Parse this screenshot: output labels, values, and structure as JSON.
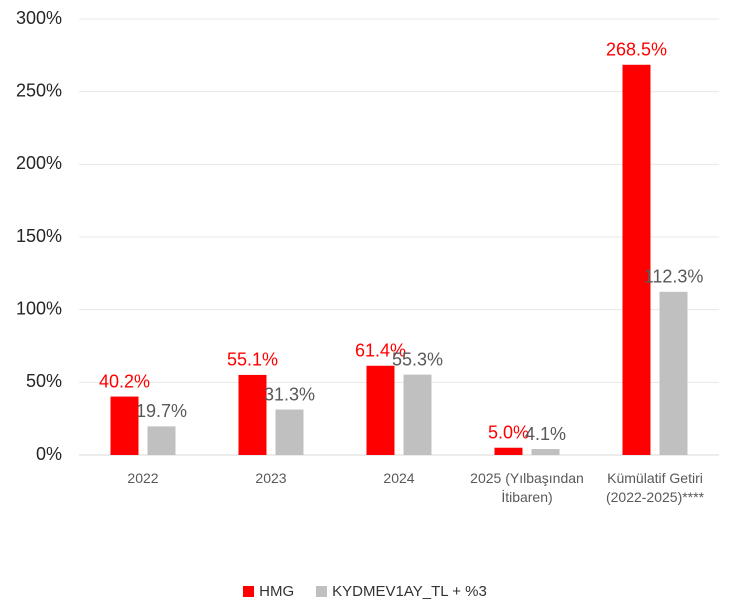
{
  "chart_data": {
    "type": "bar",
    "categories": [
      "2022",
      "2023",
      "2024",
      "2025 (Yılbaşından İtibaren)",
      "Kümülatif Getiri (2022-2025)****"
    ],
    "series": [
      {
        "name": "HMG",
        "color": "#ff0000",
        "label_color": "#ff0000",
        "values": [
          40.2,
          55.1,
          61.4,
          5.0,
          268.5
        ],
        "value_labels": [
          "40.2%",
          "55.1%",
          "61.4%",
          "5.0%",
          "268.5%"
        ]
      },
      {
        "name": "KYDMEV1AY_TL + %3",
        "color": "#c0c0c0",
        "label_color": "#595959",
        "values": [
          19.7,
          31.3,
          55.3,
          4.1,
          112.3
        ],
        "value_labels": [
          "19.7%",
          "31.3%",
          "55.3%",
          "4.1%",
          "112.3%"
        ]
      }
    ],
    "ylim": [
      0,
      300
    ],
    "yticks": [
      {
        "value": 0,
        "label": "0%"
      },
      {
        "value": 50,
        "label": "50%"
      },
      {
        "value": 100,
        "label": "100%"
      },
      {
        "value": 150,
        "label": "150%"
      },
      {
        "value": 200,
        "label": "200%"
      },
      {
        "value": 250,
        "label": "250%"
      },
      {
        "value": 300,
        "label": "300%"
      }
    ],
    "grid": true,
    "legend": "bottom"
  }
}
